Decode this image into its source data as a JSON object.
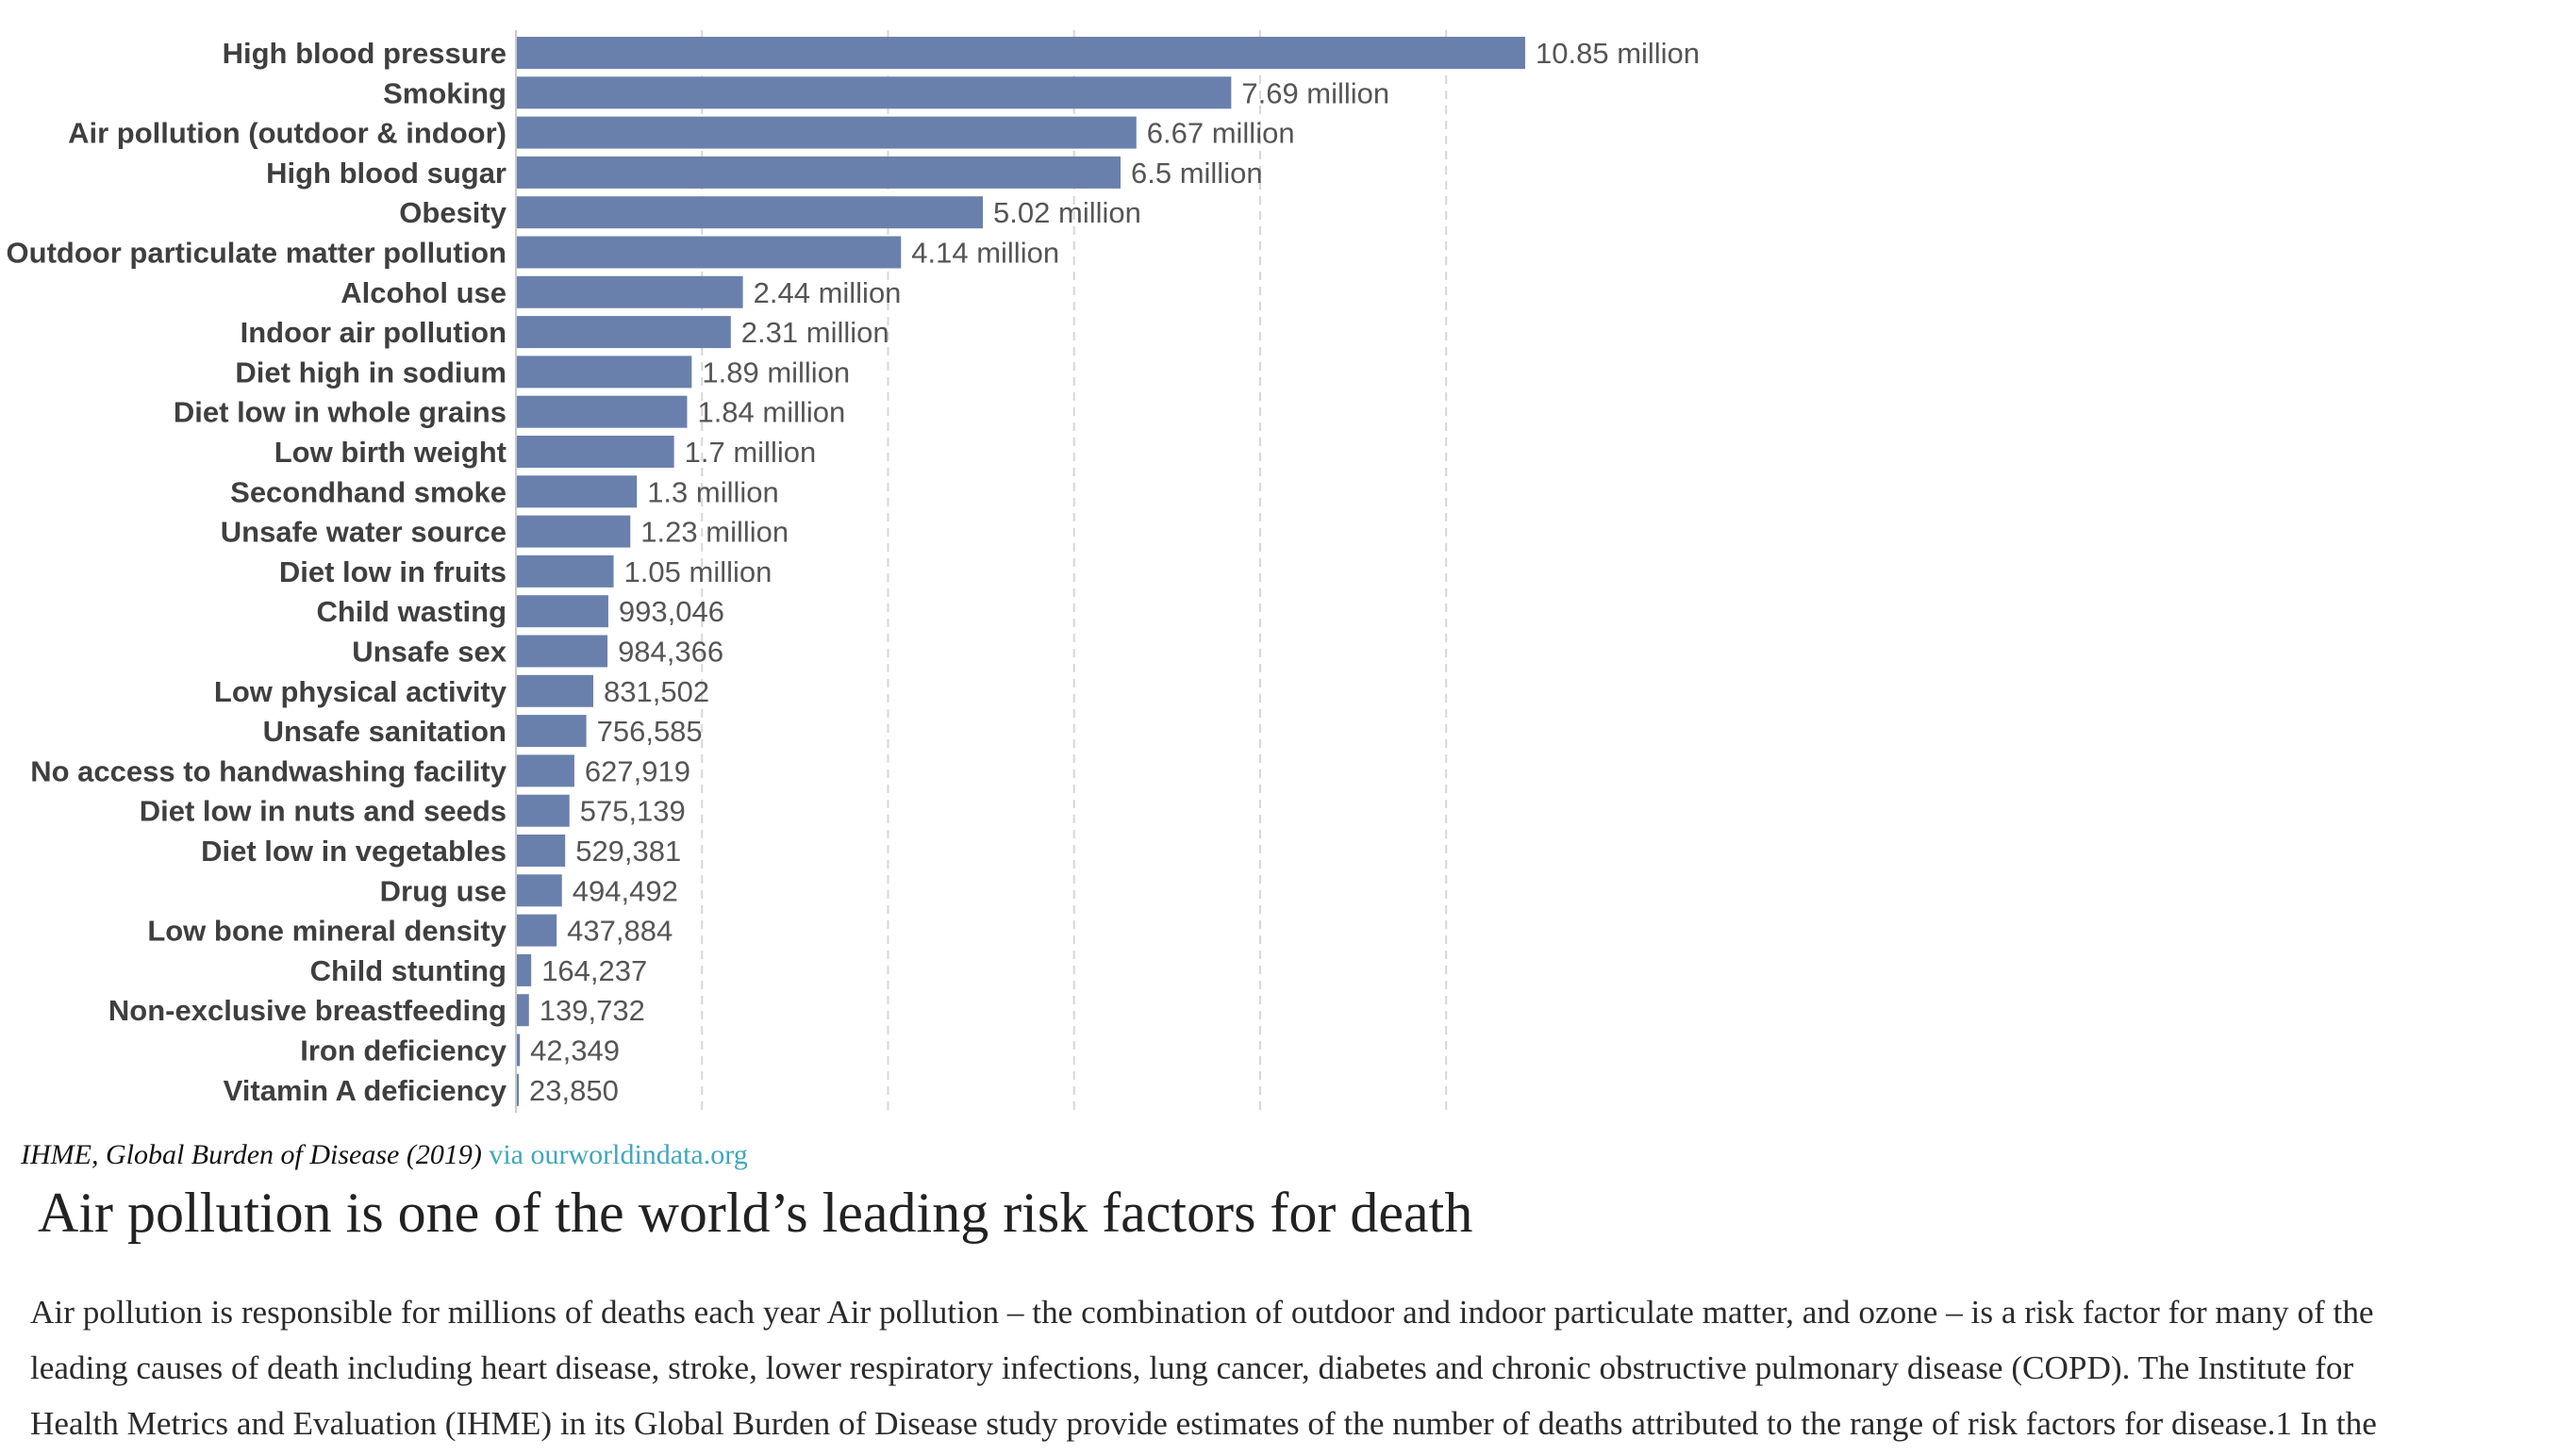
{
  "chart_data": {
    "type": "bar",
    "orientation": "horizontal",
    "categories": [
      "High blood pressure",
      "Smoking",
      "Air pollution (outdoor & indoor)",
      "High blood sugar",
      "Obesity",
      "Outdoor particulate matter pollution",
      "Alcohol use",
      "Indoor air pollution",
      "Diet high in sodium",
      "Diet low in whole grains",
      "Low birth weight",
      "Secondhand smoke",
      "Unsafe water source",
      "Diet low in fruits",
      "Child wasting",
      "Unsafe sex",
      "Low physical activity",
      "Unsafe sanitation",
      "No access to handwashing facility",
      "Diet low in nuts and seeds",
      "Diet low in vegetables",
      "Drug use",
      "Low bone mineral density",
      "Child stunting",
      "Non-exclusive breastfeeding",
      "Iron deficiency",
      "Vitamin A deficiency"
    ],
    "values": [
      10850000,
      7690000,
      6670000,
      6500000,
      5020000,
      4140000,
      2440000,
      2310000,
      1890000,
      1840000,
      1700000,
      1300000,
      1230000,
      1050000,
      993046,
      984366,
      831502,
      756585,
      627919,
      575139,
      529381,
      494492,
      437884,
      164237,
      139732,
      42349,
      23850
    ],
    "value_labels": [
      "10.85 million",
      "7.69 million",
      "6.67 million",
      "6.5 million",
      "5.02 million",
      "4.14 million",
      "2.44 million",
      "2.31 million",
      "1.89 million",
      "1.84 million",
      "1.7 million",
      "1.3 million",
      "1.23 million",
      "1.05 million",
      "993,046",
      "984,366",
      "831,502",
      "756,585",
      "627,919",
      "575,139",
      "529,381",
      "494,492",
      "437,884",
      "164,237",
      "139,732",
      "42,349",
      "23,850"
    ],
    "xlim": [
      0,
      12000000
    ],
    "gridlines": [
      2000000,
      4000000,
      6000000,
      8000000,
      10000000
    ],
    "grid": true,
    "grid_style": "dashed vertical",
    "bar_color": "#6a80ac",
    "grid_color": "#d6d6d6"
  },
  "source": {
    "name": "IHME, Global Burden of Disease (2019)",
    "link_text": "via ourworldindata.org",
    "link_color": "#3fa7ba"
  },
  "article": {
    "headline": "Air pollution is one of the world’s leading risk factors for death",
    "body_lines": [
      "Air pollution is responsible for millions of deaths each year Air pollution – the combination of outdoor and indoor particulate matter, and ozone – is a risk factor for many of the",
      "leading causes of death including heart disease, stroke, lower respiratory infections, lung cancer, diabetes and chronic obstructive pulmonary disease (COPD). The Institute for",
      "Health Metrics and Evaluation (IHME) in its Global Burden of Disease study provide estimates of the number of deaths attributed to the range of risk factors for disease.1 In the"
    ]
  }
}
